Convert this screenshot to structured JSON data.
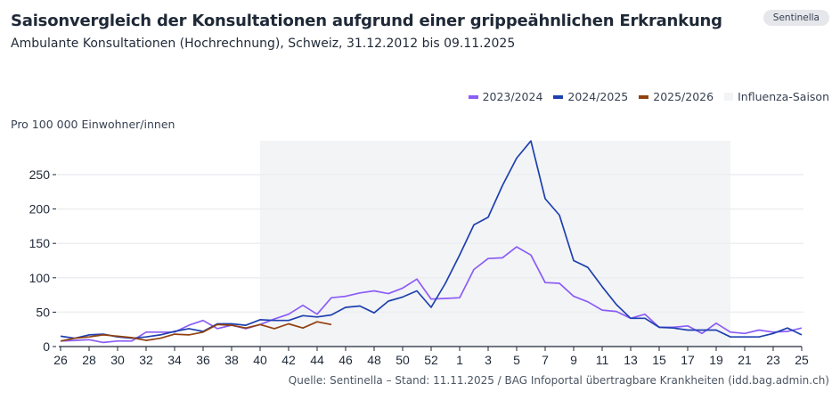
{
  "header": {
    "title": "Saisonvergleich der Konsultationen aufgrund einer grippeähnlichen Erkrankung",
    "subtitle": "Ambulante Konsultationen (Hochrechnung), Schweiz, 31.12.2012 bis 09.11.2025",
    "badge": "Sentinella"
  },
  "footer": {
    "source": "Quelle: Sentinella – Stand: 11.11.2025 / BAG Infoportal übertragbare Krankheiten (idd.bag.admin.ch)"
  },
  "chart_data": {
    "type": "line",
    "title": "Saisonvergleich der Konsultationen aufgrund einer grippeähnlichen Erkrankung",
    "ylabel": "Pro 100 000 Einwohner/innen",
    "xlabel": "",
    "ylim": [
      0,
      300
    ],
    "yticks": [
      0,
      50,
      100,
      150,
      200,
      250
    ],
    "grid": true,
    "legend_position": "top-right",
    "x": [
      "26",
      "27",
      "28",
      "29",
      "30",
      "31",
      "32",
      "33",
      "34",
      "35",
      "36",
      "37",
      "38",
      "39",
      "40",
      "41",
      "42",
      "43",
      "44",
      "45",
      "46",
      "47",
      "48",
      "49",
      "50",
      "51",
      "52",
      "53",
      "1",
      "2",
      "3",
      "4",
      "5",
      "6",
      "7",
      "8",
      "9",
      "10",
      "11",
      "12",
      "13",
      "14",
      "15",
      "16",
      "17",
      "18",
      "19",
      "20",
      "21",
      "22",
      "23",
      "24",
      "25"
    ],
    "xticks": [
      "26",
      "28",
      "30",
      "32",
      "34",
      "36",
      "38",
      "40",
      "42",
      "44",
      "46",
      "48",
      "50",
      "52",
      "1",
      "3",
      "5",
      "7",
      "9",
      "11",
      "13",
      "15",
      "17",
      "19",
      "21",
      "23",
      "25"
    ],
    "shaded_region": {
      "label": "Influenza-Saison",
      "from": "40",
      "to": "20",
      "color": "#f3f4f6"
    },
    "series": [
      {
        "name": "2023/2024",
        "color": "#8b5cf6",
        "values": [
          8,
          9,
          10,
          6,
          8,
          8,
          21,
          21,
          21,
          31,
          38,
          26,
          31,
          26,
          32,
          40,
          47,
          60,
          47,
          71,
          73,
          78,
          81,
          77,
          85,
          98,
          69,
          70,
          71,
          112,
          128,
          129,
          145,
          133,
          93,
          92,
          73,
          65,
          53,
          51,
          41,
          47,
          28,
          28,
          30,
          19,
          34,
          21,
          19,
          24,
          21,
          22,
          27
        ]
      },
      {
        "name": "2024/2025",
        "color": "#1e40af",
        "values": [
          15,
          12,
          17,
          18,
          14,
          12,
          14,
          17,
          22,
          26,
          22,
          33,
          33,
          31,
          39,
          38,
          38,
          45,
          43,
          46,
          57,
          59,
          49,
          66,
          72,
          81,
          57,
          92,
          133,
          177,
          188,
          234,
          274,
          299,
          215,
          191,
          125,
          115,
          87,
          61,
          41,
          41,
          28,
          27,
          24,
          24,
          24,
          14,
          14,
          14,
          19,
          27,
          17
        ]
      },
      {
        "name": "2025/2026",
        "color": "#92400e",
        "values": [
          8,
          12,
          14,
          17,
          15,
          13,
          9,
          12,
          18,
          17,
          21,
          32,
          31,
          27,
          32,
          26,
          33,
          27,
          36,
          32
        ]
      }
    ]
  }
}
